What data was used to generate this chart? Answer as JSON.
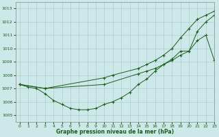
{
  "title": "Graphe pression niveau de la mer (hPa)",
  "bg_color": "#cce8e8",
  "grid_color": "#b0cccc",
  "line_color": "#1a5c1a",
  "xlim": [
    -0.5,
    23
  ],
  "ylim": [
    1004.5,
    1013.5
  ],
  "yticks": [
    1005,
    1006,
    1007,
    1008,
    1009,
    1010,
    1011,
    1012,
    1013
  ],
  "xticks": [
    0,
    1,
    2,
    3,
    4,
    5,
    6,
    7,
    8,
    9,
    10,
    11,
    12,
    13,
    14,
    15,
    16,
    17,
    18,
    19,
    20,
    21,
    22,
    23
  ],
  "line1": {
    "x": [
      0,
      1,
      2,
      3,
      4,
      5,
      6,
      7,
      8,
      9,
      10,
      11,
      12,
      13,
      14,
      15,
      16,
      17,
      18,
      19,
      20,
      21,
      22,
      23
    ],
    "y": [
      1007.3,
      1007.1,
      1007.0,
      1006.6,
      1006.1,
      1005.8,
      1005.5,
      1005.4,
      1005.4,
      1005.5,
      1005.8,
      1006.0,
      1006.3,
      1006.7,
      1007.3,
      1007.7,
      1008.3,
      1008.8,
      1009.2,
      1009.8,
      1009.8,
      1011.3,
      1012.0,
      1012.5
    ]
  },
  "line2": {
    "x": [
      0,
      3,
      10,
      14,
      15,
      16,
      17,
      18,
      19,
      20,
      21,
      22,
      23
    ],
    "y": [
      1007.3,
      1007.0,
      1007.3,
      1008.1,
      1008.3,
      1008.5,
      1008.8,
      1009.1,
      1009.5,
      1009.8,
      1010.6,
      1011.0,
      1009.1
    ]
  },
  "line3": {
    "x": [
      0,
      3,
      10,
      11,
      14,
      15,
      16,
      17,
      18,
      19,
      20,
      21,
      22,
      23
    ],
    "y": [
      1007.3,
      1007.0,
      1007.8,
      1008.0,
      1008.5,
      1008.8,
      1009.1,
      1009.5,
      1010.0,
      1010.8,
      1011.5,
      1012.2,
      1012.5,
      1012.8
    ]
  }
}
